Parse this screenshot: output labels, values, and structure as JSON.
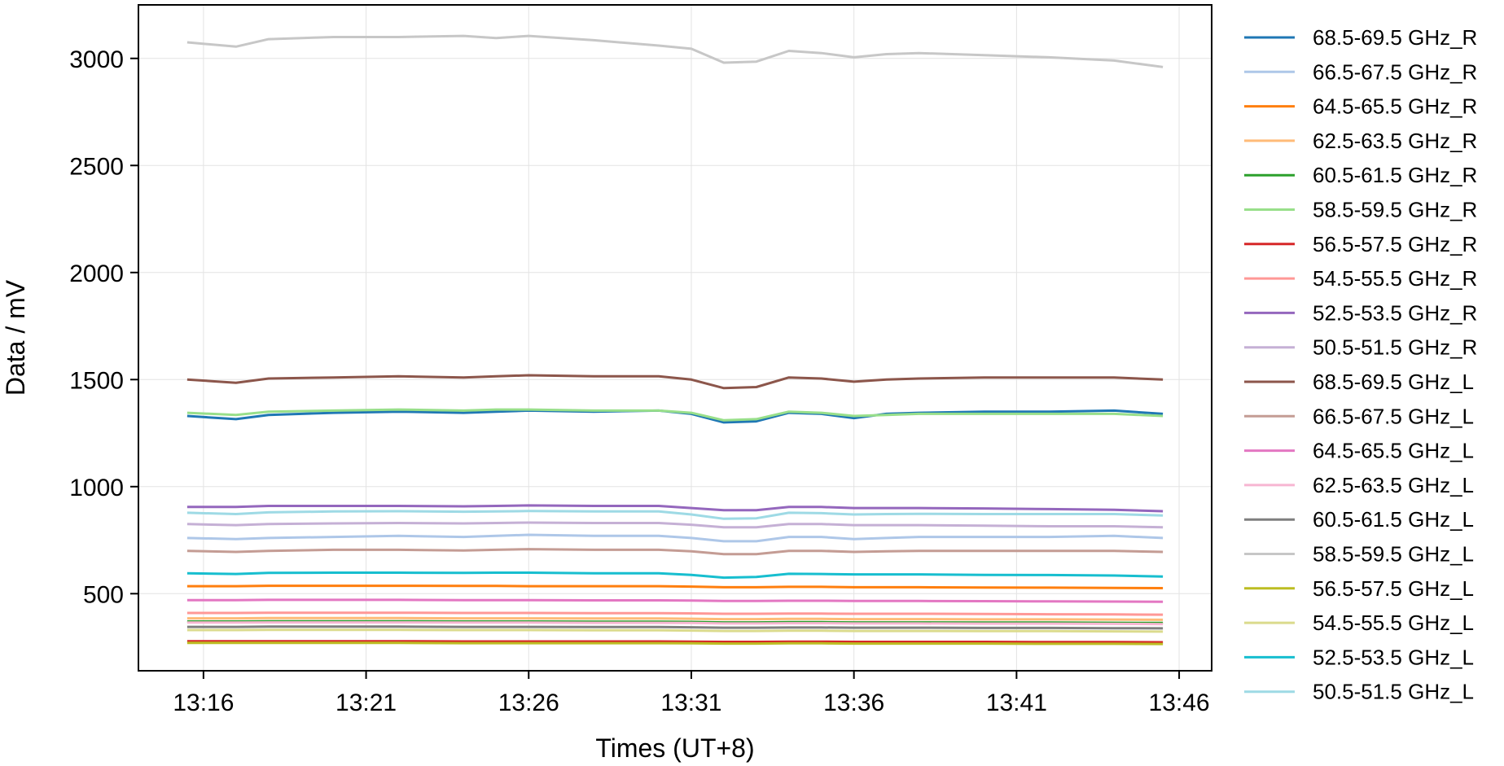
{
  "chart_data": {
    "type": "line",
    "xlabel": "Times (UT+8)",
    "ylabel": "Data / mV",
    "x_ticks": [
      "13:16",
      "13:21",
      "13:26",
      "13:31",
      "13:36",
      "13:41",
      "13:46"
    ],
    "y_ticks": [
      "500",
      "1000",
      "1500",
      "2000",
      "2500",
      "3000"
    ],
    "xlim": [
      "13:14",
      "13:47"
    ],
    "ylim": [
      140,
      3250
    ],
    "grid": true,
    "legend_position": "right outside",
    "x": [
      "13:15:30",
      "13:17:00",
      "13:18:00",
      "13:20:00",
      "13:22:00",
      "13:24:00",
      "13:25:00",
      "13:26:00",
      "13:28:00",
      "13:30:00",
      "13:31:00",
      "13:32:00",
      "13:33:00",
      "13:34:00",
      "13:35:00",
      "13:36:00",
      "13:37:00",
      "13:38:00",
      "13:40:00",
      "13:42:00",
      "13:44:00",
      "13:45:30"
    ],
    "series": [
      {
        "name": "68.5-69.5 GHz_R",
        "color": "#1f77b4",
        "values": [
          1330,
          1315,
          1335,
          1345,
          1350,
          1345,
          1350,
          1355,
          1350,
          1355,
          1340,
          1300,
          1305,
          1345,
          1340,
          1320,
          1340,
          1345,
          1350,
          1350,
          1355,
          1340
        ]
      },
      {
        "name": "66.5-67.5 GHz_R",
        "color": "#aec7e8",
        "values": [
          760,
          755,
          760,
          765,
          770,
          765,
          770,
          775,
          770,
          770,
          760,
          745,
          745,
          765,
          765,
          755,
          760,
          765,
          765,
          765,
          770,
          760
        ]
      },
      {
        "name": "64.5-65.5 GHz_R",
        "color": "#ff7f0e",
        "values": [
          535,
          535,
          537,
          537,
          537,
          536,
          536,
          535,
          535,
          535,
          533,
          530,
          530,
          532,
          532,
          530,
          530,
          530,
          529,
          528,
          527,
          526
        ]
      },
      {
        "name": "62.5-63.5 GHz_R",
        "color": "#ffbb78",
        "values": [
          385,
          385,
          386,
          386,
          386,
          385,
          385,
          385,
          384,
          384,
          383,
          381,
          381,
          382,
          382,
          381,
          381,
          381,
          380,
          380,
          379,
          378
        ]
      },
      {
        "name": "60.5-61.5 GHz_R",
        "color": "#2ca02c",
        "values": [
          370,
          370,
          371,
          371,
          371,
          370,
          370,
          370,
          369,
          369,
          368,
          366,
          366,
          367,
          367,
          366,
          366,
          366,
          365,
          365,
          364,
          363
        ]
      },
      {
        "name": "58.5-59.5 GHz_R",
        "color": "#98df8a",
        "values": [
          1345,
          1335,
          1350,
          1355,
          1360,
          1355,
          1360,
          1360,
          1355,
          1355,
          1345,
          1310,
          1315,
          1350,
          1345,
          1330,
          1335,
          1340,
          1340,
          1340,
          1340,
          1330
        ]
      },
      {
        "name": "56.5-57.5 GHz_R",
        "color": "#d62728",
        "values": [
          278,
          278,
          278,
          278,
          278,
          277,
          277,
          277,
          277,
          277,
          276,
          275,
          275,
          276,
          276,
          275,
          275,
          275,
          275,
          274,
          274,
          273
        ]
      },
      {
        "name": "54.5-55.5 GHz_R",
        "color": "#ff9896",
        "values": [
          410,
          410,
          411,
          411,
          411,
          410,
          410,
          410,
          409,
          409,
          408,
          406,
          406,
          407,
          407,
          406,
          406,
          406,
          405,
          404,
          403,
          402
        ]
      },
      {
        "name": "52.5-53.5 GHz_R",
        "color": "#9467bd",
        "values": [
          905,
          905,
          910,
          910,
          910,
          908,
          910,
          912,
          910,
          910,
          900,
          890,
          890,
          905,
          905,
          900,
          900,
          900,
          898,
          895,
          892,
          885
        ]
      },
      {
        "name": "50.5-51.5 GHz_R",
        "color": "#c5b0d5",
        "values": [
          825,
          820,
          825,
          828,
          830,
          828,
          830,
          832,
          830,
          830,
          822,
          810,
          810,
          825,
          825,
          820,
          820,
          820,
          818,
          815,
          815,
          810
        ]
      },
      {
        "name": "68.5-69.5 GHz_L",
        "color": "#8c564b",
        "values": [
          1500,
          1485,
          1505,
          1510,
          1515,
          1510,
          1515,
          1520,
          1515,
          1515,
          1500,
          1460,
          1465,
          1510,
          1505,
          1490,
          1500,
          1505,
          1510,
          1510,
          1510,
          1500
        ]
      },
      {
        "name": "66.5-67.5 GHz_L",
        "color": "#c49c94",
        "values": [
          700,
          695,
          700,
          705,
          705,
          702,
          705,
          708,
          705,
          705,
          698,
          685,
          685,
          700,
          700,
          695,
          698,
          700,
          700,
          700,
          700,
          695
        ]
      },
      {
        "name": "64.5-65.5 GHz_L",
        "color": "#e377c2",
        "values": [
          470,
          470,
          471,
          471,
          471,
          470,
          470,
          470,
          469,
          469,
          468,
          466,
          466,
          467,
          467,
          466,
          466,
          466,
          465,
          464,
          463,
          462
        ]
      },
      {
        "name": "62.5-63.5 GHz_L",
        "color": "#f7b6d2",
        "values": [
          365,
          365,
          366,
          366,
          366,
          365,
          365,
          365,
          364,
          364,
          363,
          361,
          361,
          362,
          362,
          361,
          361,
          361,
          360,
          360,
          359,
          358
        ]
      },
      {
        "name": "60.5-61.5 GHz_L",
        "color": "#7f7f7f",
        "values": [
          345,
          345,
          346,
          346,
          346,
          345,
          345,
          345,
          344,
          344,
          343,
          341,
          341,
          342,
          342,
          341,
          341,
          341,
          340,
          340,
          339,
          338
        ]
      },
      {
        "name": "58.5-59.5 GHz_L",
        "color": "#c7c7c7",
        "values": [
          3075,
          3055,
          3090,
          3100,
          3100,
          3105,
          3095,
          3105,
          3085,
          3060,
          3045,
          2980,
          2985,
          3035,
          3025,
          3005,
          3020,
          3025,
          3015,
          3005,
          2990,
          2960
        ]
      },
      {
        "name": "56.5-57.5 GHz_L",
        "color": "#bcbd22",
        "values": [
          270,
          270,
          270,
          270,
          270,
          269,
          269,
          269,
          269,
          269,
          268,
          267,
          267,
          268,
          268,
          267,
          267,
          267,
          267,
          266,
          266,
          265
        ]
      },
      {
        "name": "54.5-55.5 GHz_L",
        "color": "#dbdb8d",
        "values": [
          330,
          330,
          331,
          331,
          331,
          330,
          330,
          330,
          329,
          329,
          328,
          326,
          326,
          327,
          327,
          326,
          326,
          326,
          325,
          325,
          324,
          323
        ]
      },
      {
        "name": "52.5-53.5 GHz_L",
        "color": "#17becf",
        "values": [
          595,
          592,
          597,
          598,
          598,
          597,
          598,
          598,
          595,
          595,
          588,
          575,
          578,
          593,
          592,
          590,
          590,
          590,
          588,
          587,
          585,
          580
        ]
      },
      {
        "name": "50.5-51.5 GHz_L",
        "color": "#9edae5",
        "values": [
          878,
          872,
          880,
          884,
          885,
          883,
          884,
          886,
          884,
          884,
          870,
          850,
          852,
          878,
          876,
          870,
          872,
          873,
          872,
          872,
          872,
          865
        ]
      }
    ]
  }
}
